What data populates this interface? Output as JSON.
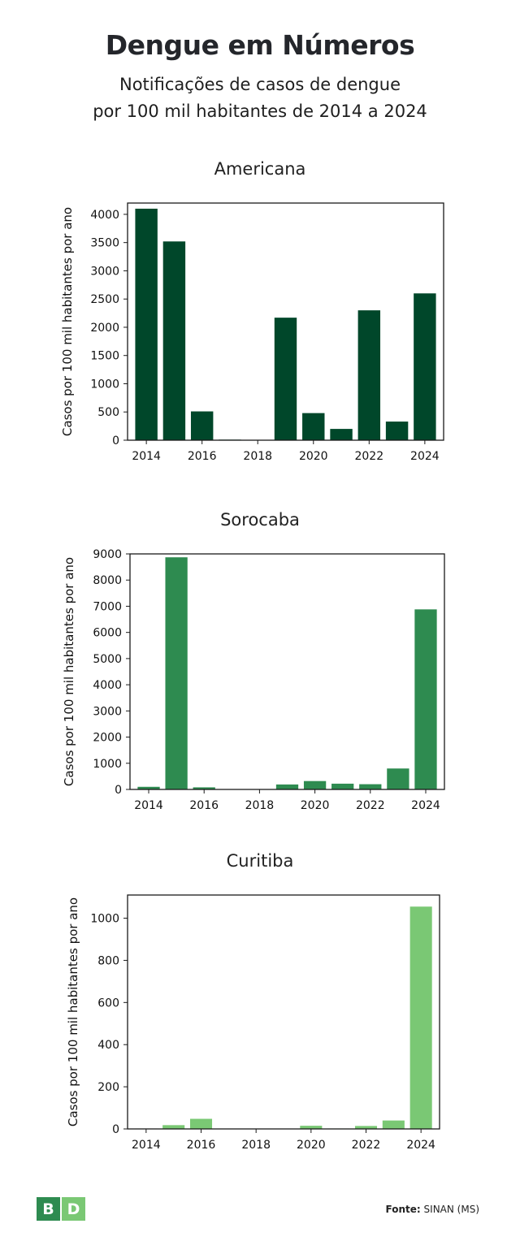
{
  "header": {
    "title": "Dengue em Números",
    "subtitle_line1": "Notificações de casos de dengue",
    "subtitle_line2": "por 100 mil habitantes de 2014 a 2024"
  },
  "colors": {
    "americana": "#00472a",
    "sorocaba": "#2e8b50",
    "curitiba": "#7ac874",
    "logo_b": "#2e8b50",
    "logo_d": "#7ac874"
  },
  "chart_data": [
    {
      "type": "bar",
      "title": "Americana",
      "ylabel": "Casos por 100 mil habitantes por ano",
      "x": [
        2014,
        2015,
        2016,
        2017,
        2018,
        2019,
        2020,
        2021,
        2022,
        2023,
        2024
      ],
      "values": [
        4100,
        3520,
        510,
        10,
        5,
        2170,
        480,
        200,
        2300,
        330,
        2600
      ],
      "xticks": [
        "2014",
        "2016",
        "2018",
        "2020",
        "2022",
        "2024"
      ],
      "yticks": [
        "0",
        "500",
        "1000",
        "1500",
        "2000",
        "2500",
        "3000",
        "3500",
        "4000"
      ],
      "ylim": [
        0,
        4200
      ],
      "grid": false
    },
    {
      "type": "bar",
      "title": "Sorocaba",
      "ylabel": "Casos por 100 mil habitantes por ano",
      "x": [
        2014,
        2015,
        2016,
        2017,
        2018,
        2019,
        2020,
        2021,
        2022,
        2023,
        2024
      ],
      "values": [
        100,
        8870,
        80,
        5,
        5,
        190,
        320,
        220,
        200,
        800,
        6880
      ],
      "xticks": [
        "2014",
        "2016",
        "2018",
        "2020",
        "2022",
        "2024"
      ],
      "yticks": [
        "0",
        "1000",
        "2000",
        "3000",
        "4000",
        "5000",
        "6000",
        "7000",
        "8000",
        "9000"
      ],
      "ylim": [
        0,
        9000
      ],
      "grid": false
    },
    {
      "type": "bar",
      "title": "Curitiba",
      "ylabel": "Casos por 100 mil habitantes por ano",
      "x": [
        2014,
        2015,
        2016,
        2017,
        2018,
        2019,
        2020,
        2021,
        2022,
        2023,
        2024
      ],
      "values": [
        2,
        18,
        48,
        1,
        1,
        1,
        15,
        2,
        14,
        40,
        1055
      ],
      "xticks": [
        "2014",
        "2016",
        "2018",
        "2020",
        "2022",
        "2024"
      ],
      "yticks": [
        "0",
        "200",
        "400",
        "600",
        "800",
        "1000"
      ],
      "ylim": [
        0,
        1110
      ],
      "grid": false
    }
  ],
  "footer": {
    "logo_letter_1": "B",
    "logo_letter_2": "D",
    "source_label": "Fonte:",
    "source_value": "SINAN (MS)"
  }
}
